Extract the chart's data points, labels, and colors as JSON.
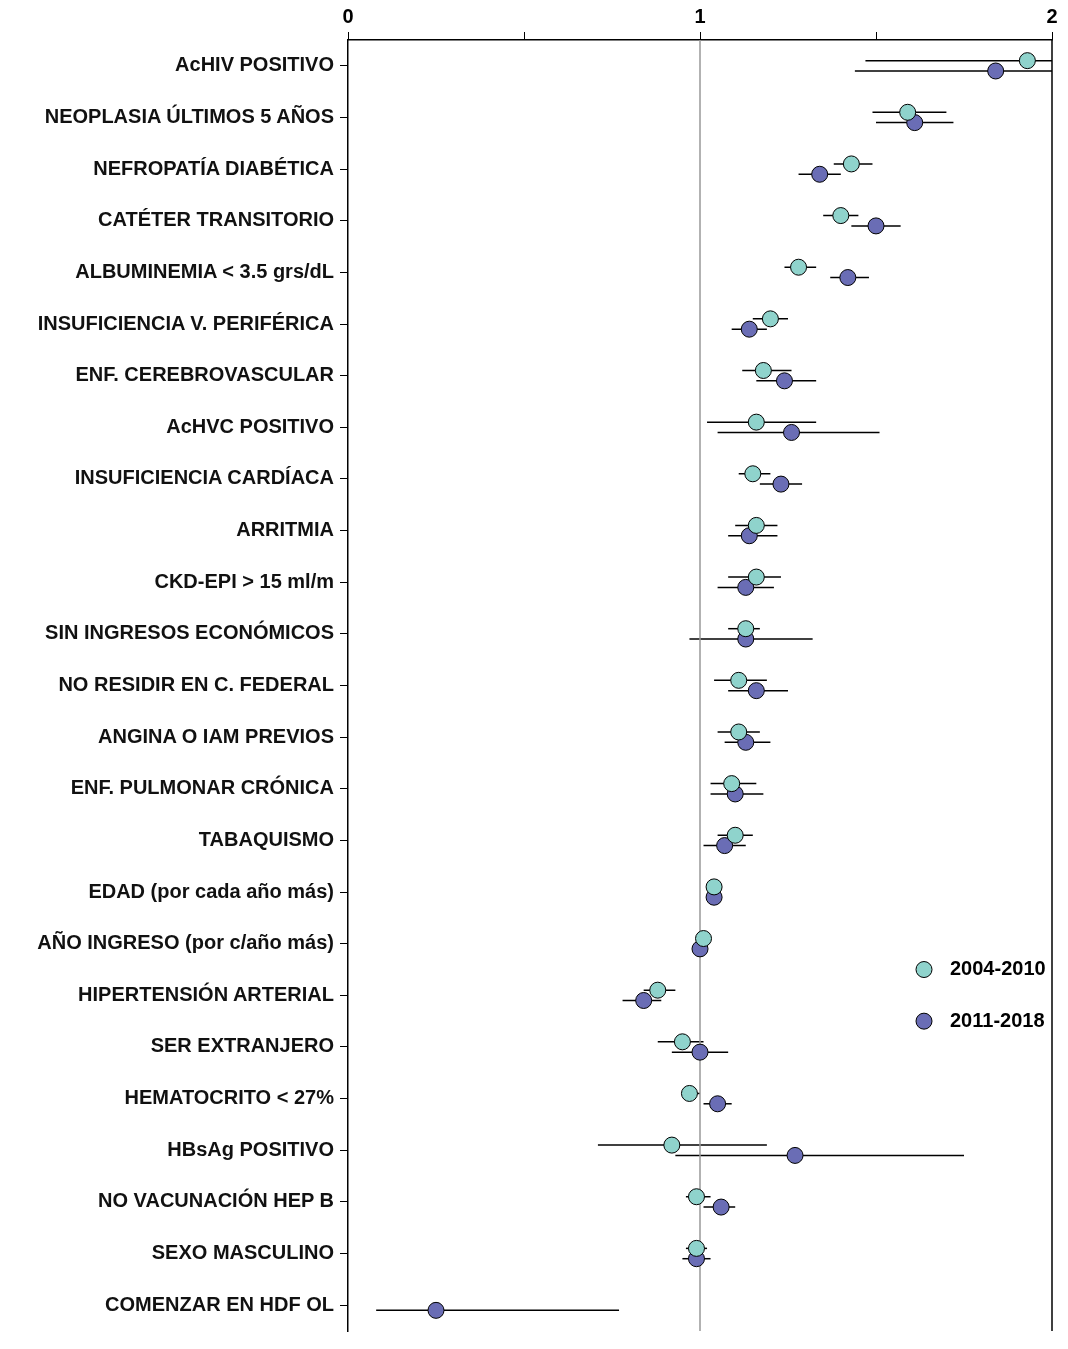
{
  "chart_data": {
    "type": "scatter",
    "orientation": "horizontal",
    "categories": [
      "AcHIV POSITIVO",
      "NEOPLASIA ÚLTIMOS 5 AÑOS",
      "NEFROPATÍA DIABÉTICA",
      "CATÉTER TRANSITORIO",
      "ALBUMINEMIA < 3.5 grs/dL",
      "INSUFICIENCIA V. PERIFÉRICA",
      "ENF. CEREBROVASCULAR",
      "AcHVC POSITIVO",
      "INSUFICIENCIA CARDÍACA",
      "ARRITMIA",
      "CKD-EPI > 15 ml/m",
      "SIN INGRESOS ECONÓMICOS",
      "NO RESIDIR EN C. FEDERAL",
      "ANGINA O IAM PREVIOS",
      "ENF. PULMONAR CRÓNICA",
      "TABAQUISMO",
      "EDAD (por cada año más)",
      "AÑO INGRESO (por c/año más)",
      "HIPERTENSIÓN ARTERIAL",
      "SER EXTRANJERO",
      "HEMATOCRITO < 27%",
      "HBsAg POSITIVO",
      "NO VACUNACIÓN HEP B",
      "SEXO MASCULINO",
      "COMENZAR EN HDF OL"
    ],
    "series": [
      {
        "name": "2004-2010",
        "color": "#8fd3cc",
        "values": [
          1.93,
          1.59,
          1.43,
          1.4,
          1.28,
          1.2,
          1.18,
          1.16,
          1.15,
          1.16,
          1.16,
          1.13,
          1.11,
          1.11,
          1.09,
          1.1,
          1.04,
          1.01,
          0.88,
          0.95,
          0.97,
          0.92,
          0.99,
          0.99,
          null
        ],
        "errors": [
          [
            1.47,
            2.0
          ],
          [
            1.49,
            1.7
          ],
          [
            1.38,
            1.49
          ],
          [
            1.35,
            1.45
          ],
          [
            1.24,
            1.33
          ],
          [
            1.15,
            1.25
          ],
          [
            1.12,
            1.26
          ],
          [
            1.02,
            1.33
          ],
          [
            1.11,
            1.2
          ],
          [
            1.1,
            1.22
          ],
          [
            1.08,
            1.23
          ],
          [
            1.08,
            1.17
          ],
          [
            1.04,
            1.19
          ],
          [
            1.05,
            1.17
          ],
          [
            1.03,
            1.16
          ],
          [
            1.05,
            1.15
          ],
          null,
          null,
          [
            0.84,
            0.93
          ],
          [
            0.88,
            1.01
          ],
          [
            0.95,
            1.0
          ],
          [
            0.71,
            1.19
          ],
          [
            0.96,
            1.03
          ],
          [
            0.96,
            1.02
          ],
          null
        ]
      },
      {
        "name": "2011-2018",
        "color": "#6a6db5",
        "values": [
          1.84,
          1.61,
          1.34,
          1.5,
          1.42,
          1.14,
          1.24,
          1.26,
          1.23,
          1.14,
          1.13,
          1.13,
          1.16,
          1.13,
          1.1,
          1.07,
          1.04,
          1.0,
          0.84,
          1.0,
          1.05,
          1.27,
          1.06,
          0.99,
          0.25
        ],
        "errors": [
          [
            1.44,
            2.0
          ],
          [
            1.5,
            1.72
          ],
          [
            1.28,
            1.4
          ],
          [
            1.43,
            1.57
          ],
          [
            1.37,
            1.48
          ],
          [
            1.09,
            1.19
          ],
          [
            1.16,
            1.33
          ],
          [
            1.05,
            1.51
          ],
          [
            1.17,
            1.29
          ],
          [
            1.08,
            1.22
          ],
          [
            1.05,
            1.21
          ],
          [
            0.97,
            1.32
          ],
          [
            1.08,
            1.25
          ],
          [
            1.07,
            1.2
          ],
          [
            1.03,
            1.18
          ],
          [
            1.01,
            1.13
          ],
          null,
          null,
          [
            0.78,
            0.89
          ],
          [
            0.92,
            1.08
          ],
          [
            1.01,
            1.09
          ],
          [
            0.93,
            1.75
          ],
          [
            1.01,
            1.1
          ],
          [
            0.95,
            1.03
          ],
          [
            0.08,
            0.77
          ]
        ]
      }
    ],
    "xlim": [
      0,
      2
    ],
    "xticks": [
      0,
      {
        "value": 0.5,
        "label": null
      },
      1,
      {
        "value": 1.5,
        "label": null
      },
      2
    ],
    "ref_lines": [
      {
        "axis": "x",
        "value": 1,
        "color": "#999999"
      }
    ],
    "marker": "circle",
    "legend": "right",
    "grid": false
  }
}
